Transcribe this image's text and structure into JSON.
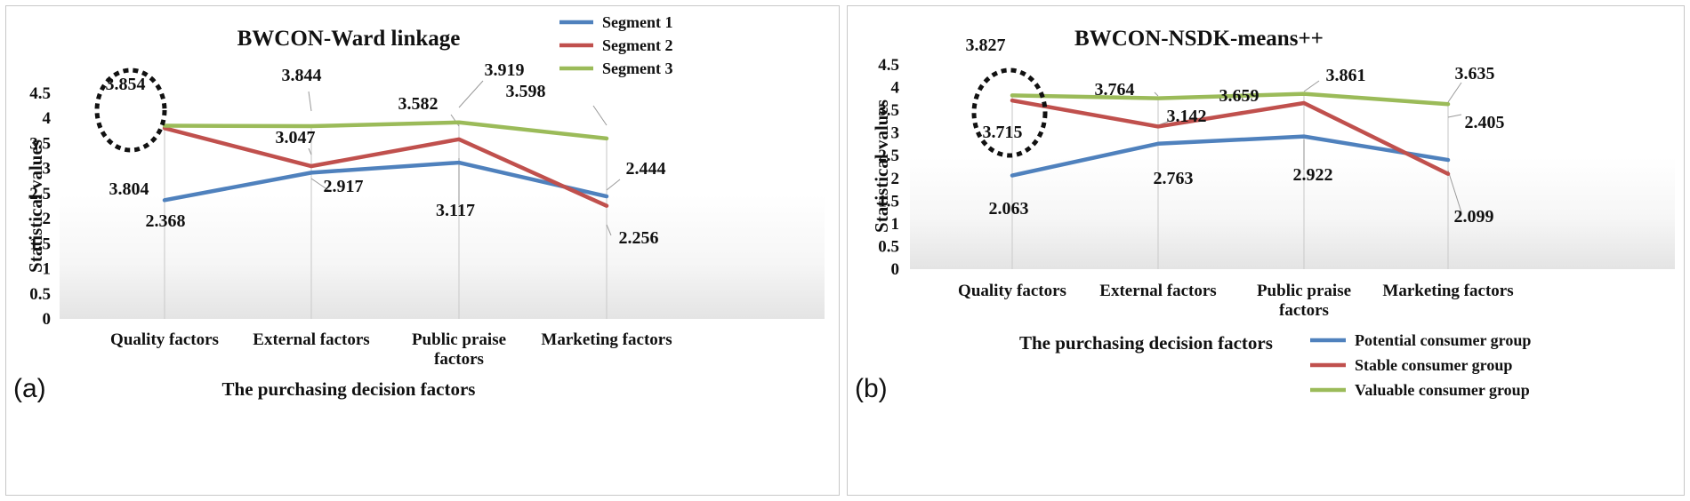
{
  "chart_data": [
    {
      "panel_tag": "(a)",
      "type": "line",
      "title": "BWCON-Ward linkage",
      "xlabel": "The purchasing decision factors",
      "ylabel": "Statistical values",
      "ylim": [
        0,
        4.5
      ],
      "yticks": [
        "0",
        "0.5",
        "1",
        "1.5",
        "2",
        "2.5",
        "3",
        "3.5",
        "4",
        "4.5"
      ],
      "categories": [
        [
          "Quality factors"
        ],
        [
          "External factors"
        ],
        [
          "Public praise",
          "factors"
        ],
        [
          "Marketing factors"
        ]
      ],
      "legend_position": "top-right",
      "series": [
        {
          "name": "Segment 1",
          "color": "#4f81bd",
          "values": [
            2.368,
            2.917,
            3.117,
            2.444
          ],
          "labels": [
            "2.368",
            "2.917",
            "3.117",
            "2.444"
          ]
        },
        {
          "name": "Segment 2",
          "color": "#c0504d",
          "values": [
            3.804,
            3.047,
            3.582,
            2.256
          ],
          "labels": [
            "3.804",
            "3.047",
            "3.582",
            "2.256"
          ]
        },
        {
          "name": "Segment 3",
          "color": "#9bbb59",
          "values": [
            3.854,
            3.844,
            3.919,
            3.598
          ],
          "labels": [
            "3.854",
            "3.844",
            "3.919",
            "3.598"
          ]
        }
      ],
      "annotation": "dotted circle around Quality factors values"
    },
    {
      "panel_tag": "(b)",
      "type": "line",
      "title": "BWCON-NSDK-means++",
      "xlabel": "The purchasing decision factors",
      "ylabel": "Statistical values",
      "ylim": [
        0,
        4.5
      ],
      "yticks": [
        "0",
        "0.5",
        "1",
        "1.5",
        "2",
        "2.5",
        "3",
        "3.5",
        "4",
        "4.5"
      ],
      "categories": [
        [
          "Quality factors"
        ],
        [
          "External factors"
        ],
        [
          "Public praise",
          "factors"
        ],
        [
          "Marketing factors"
        ]
      ],
      "legend_position": "bottom-right",
      "series": [
        {
          "name": "Potential consumer group",
          "color": "#4f81bd",
          "values": [
            2.063,
            2.763,
            2.922,
            2.405
          ],
          "labels": [
            "2.063",
            "2.763",
            "2.922",
            "2.405"
          ]
        },
        {
          "name": "Stable consumer group",
          "color": "#c0504d",
          "values": [
            3.715,
            3.142,
            3.659,
            2.099
          ],
          "labels": [
            "3.715",
            "3.142",
            "3.659",
            "2.099"
          ]
        },
        {
          "name": "Valuable consumer group",
          "color": "#9bbb59",
          "values": [
            3.827,
            3.764,
            3.861,
            3.635
          ],
          "labels": [
            "3.827",
            "3.764",
            "3.861",
            "3.635"
          ]
        }
      ],
      "annotation": "dotted circle around Quality factors values"
    }
  ]
}
